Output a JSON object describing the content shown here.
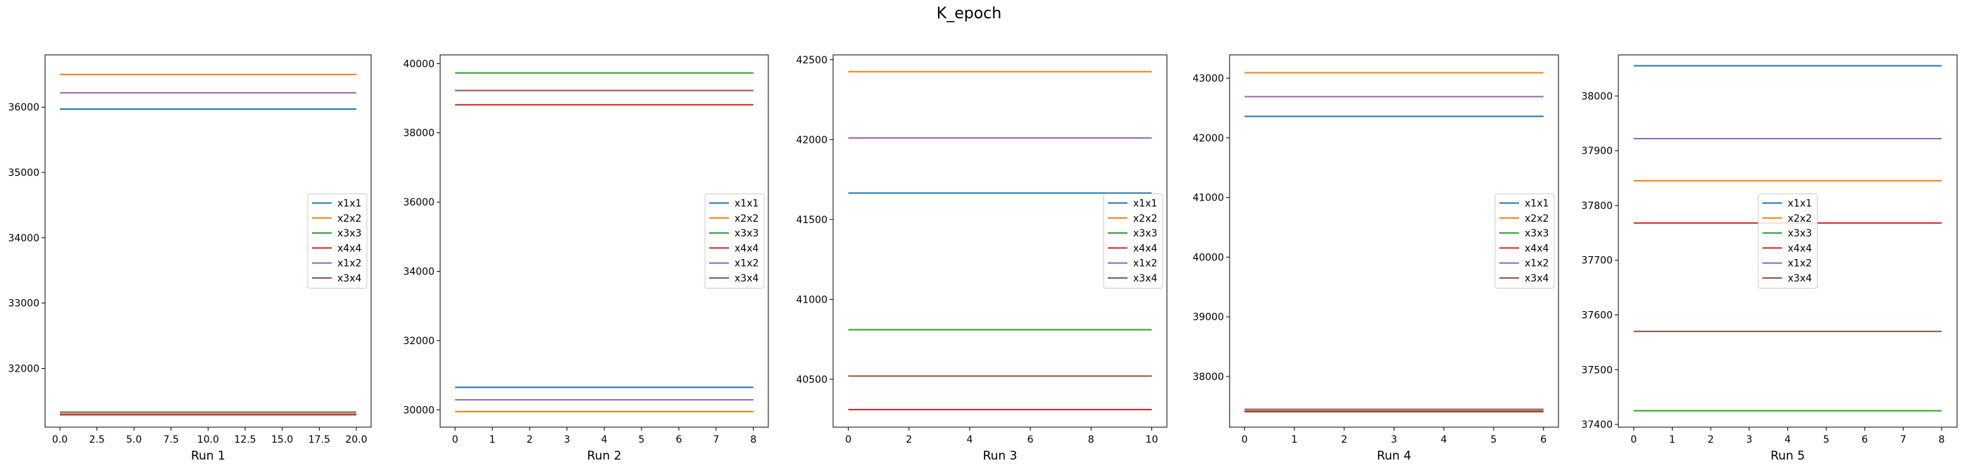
{
  "title": "K_epoch",
  "series_colors": {
    "x1x1": "#1f77b4",
    "x2x2": "#ff7f0e",
    "x3x3": "#2ca02c",
    "x4x4": "#d62728",
    "x1x2": "#9467bd",
    "x3x4": "#8c564b"
  },
  "chart_data": [
    {
      "type": "line",
      "xlabel": "Run 1",
      "xlim": [
        -1.0,
        21.0
      ],
      "ylim": [
        31100,
        36800
      ],
      "xticks": [
        0.0,
        2.5,
        5.0,
        7.5,
        10.0,
        12.5,
        15.0,
        17.5,
        20.0
      ],
      "xtick_labels": [
        "0.0",
        "2.5",
        "5.0",
        "7.5",
        "10.0",
        "12.5",
        "15.0",
        "17.5",
        "20.0"
      ],
      "yticks": [
        32000,
        33000,
        34000,
        35000,
        36000
      ],
      "ytick_labels": [
        "32000",
        "33000",
        "34000",
        "35000",
        "36000"
      ],
      "legend_position": "center-right",
      "series": [
        {
          "name": "x1x1",
          "x": [
            0,
            20
          ],
          "values": [
            35970,
            35970
          ]
        },
        {
          "name": "x2x2",
          "x": [
            0,
            20
          ],
          "values": [
            36500,
            36500
          ]
        },
        {
          "name": "x3x3",
          "x": [
            0,
            20
          ],
          "values": [
            31300,
            31300
          ]
        },
        {
          "name": "x4x4",
          "x": [
            0,
            20
          ],
          "values": [
            31290,
            31290
          ]
        },
        {
          "name": "x1x2",
          "x": [
            0,
            20
          ],
          "values": [
            36220,
            36220
          ]
        },
        {
          "name": "x3x4",
          "x": [
            0,
            20
          ],
          "values": [
            31330,
            31330
          ]
        }
      ]
    },
    {
      "type": "line",
      "xlabel": "Run 2",
      "xlim": [
        -0.4,
        8.4
      ],
      "ylim": [
        29500,
        40250
      ],
      "xticks": [
        0,
        1,
        2,
        3,
        4,
        5,
        6,
        7,
        8
      ],
      "xtick_labels": [
        "0",
        "1",
        "2",
        "3",
        "4",
        "5",
        "6",
        "7",
        "8"
      ],
      "yticks": [
        30000,
        32000,
        34000,
        36000,
        38000,
        40000
      ],
      "ytick_labels": [
        "30000",
        "32000",
        "34000",
        "36000",
        "38000",
        "40000"
      ],
      "legend_position": "center-right",
      "series": [
        {
          "name": "x1x1",
          "x": [
            0,
            8
          ],
          "values": [
            30650,
            30650
          ]
        },
        {
          "name": "x2x2",
          "x": [
            0,
            8
          ],
          "values": [
            29950,
            29950
          ]
        },
        {
          "name": "x3x3",
          "x": [
            0,
            8
          ],
          "values": [
            39730,
            39730
          ]
        },
        {
          "name": "x4x4",
          "x": [
            0,
            8
          ],
          "values": [
            38810,
            38810
          ]
        },
        {
          "name": "x1x2",
          "x": [
            0,
            8
          ],
          "values": [
            30290,
            30290
          ]
        },
        {
          "name": "x3x4",
          "x": [
            0,
            8
          ],
          "values": [
            39220,
            39220
          ]
        }
      ]
    },
    {
      "type": "line",
      "xlabel": "Run 3",
      "xlim": [
        -0.5,
        10.5
      ],
      "ylim": [
        40200,
        42530
      ],
      "xticks": [
        0,
        2,
        4,
        6,
        8,
        10
      ],
      "xtick_labels": [
        "0",
        "2",
        "4",
        "6",
        "8",
        "10"
      ],
      "yticks": [
        40500,
        41000,
        41500,
        42000,
        42500
      ],
      "ytick_labels": [
        "40500",
        "41000",
        "41500",
        "42000",
        "42500"
      ],
      "legend_position": "center-right",
      "series": [
        {
          "name": "x1x1",
          "x": [
            0,
            10
          ],
          "values": [
            41665,
            41665
          ]
        },
        {
          "name": "x2x2",
          "x": [
            0,
            10
          ],
          "values": [
            42425,
            42425
          ]
        },
        {
          "name": "x3x3",
          "x": [
            0,
            10
          ],
          "values": [
            40810,
            40810
          ]
        },
        {
          "name": "x4x4",
          "x": [
            0,
            10
          ],
          "values": [
            40310,
            40310
          ]
        },
        {
          "name": "x1x2",
          "x": [
            0,
            10
          ],
          "values": [
            42010,
            42010
          ]
        },
        {
          "name": "x3x4",
          "x": [
            0,
            10
          ],
          "values": [
            40520,
            40520
          ]
        }
      ]
    },
    {
      "type": "line",
      "xlabel": "Run 4",
      "xlim": [
        -0.3,
        6.3
      ],
      "ylim": [
        37150,
        43390
      ],
      "xticks": [
        0,
        1,
        2,
        3,
        4,
        5,
        6
      ],
      "xtick_labels": [
        "0",
        "1",
        "2",
        "3",
        "4",
        "5",
        "6"
      ],
      "yticks": [
        38000,
        39000,
        40000,
        41000,
        42000,
        43000
      ],
      "ytick_labels": [
        "38000",
        "39000",
        "40000",
        "41000",
        "42000",
        "43000"
      ],
      "legend_position": "center-right",
      "series": [
        {
          "name": "x1x1",
          "x": [
            0,
            6
          ],
          "values": [
            42360,
            42360
          ]
        },
        {
          "name": "x2x2",
          "x": [
            0,
            6
          ],
          "values": [
            43090,
            43090
          ]
        },
        {
          "name": "x3x3",
          "x": [
            0,
            6
          ],
          "values": [
            37420,
            37420
          ]
        },
        {
          "name": "x4x4",
          "x": [
            0,
            6
          ],
          "values": [
            37410,
            37410
          ]
        },
        {
          "name": "x1x2",
          "x": [
            0,
            6
          ],
          "values": [
            42690,
            42690
          ]
        },
        {
          "name": "x3x4",
          "x": [
            0,
            6
          ],
          "values": [
            37450,
            37450
          ]
        }
      ]
    },
    {
      "type": "line",
      "xlabel": "Run 5",
      "xlim": [
        -0.4,
        8.4
      ],
      "ylim": [
        37395,
        38075
      ],
      "xticks": [
        0,
        1,
        2,
        3,
        4,
        5,
        6,
        7,
        8
      ],
      "xtick_labels": [
        "0",
        "1",
        "2",
        "3",
        "4",
        "5",
        "6",
        "7",
        "8"
      ],
      "yticks": [
        37400,
        37500,
        37600,
        37700,
        37800,
        37900,
        38000
      ],
      "ytick_labels": [
        "37400",
        "37500",
        "37600",
        "37700",
        "37800",
        "37900",
        "38000"
      ],
      "legend_position": "center",
      "series": [
        {
          "name": "x1x1",
          "x": [
            0,
            8
          ],
          "values": [
            38055,
            38055
          ]
        },
        {
          "name": "x2x2",
          "x": [
            0,
            8
          ],
          "values": [
            37845,
            37845
          ]
        },
        {
          "name": "x3x3",
          "x": [
            0,
            8
          ],
          "values": [
            37425,
            37425
          ]
        },
        {
          "name": "x4x4",
          "x": [
            0,
            8
          ],
          "values": [
            37768,
            37768
          ]
        },
        {
          "name": "x1x2",
          "x": [
            0,
            8
          ],
          "values": [
            37922,
            37922
          ]
        },
        {
          "name": "x3x4",
          "x": [
            0,
            8
          ],
          "values": [
            37570,
            37570
          ]
        }
      ]
    }
  ]
}
